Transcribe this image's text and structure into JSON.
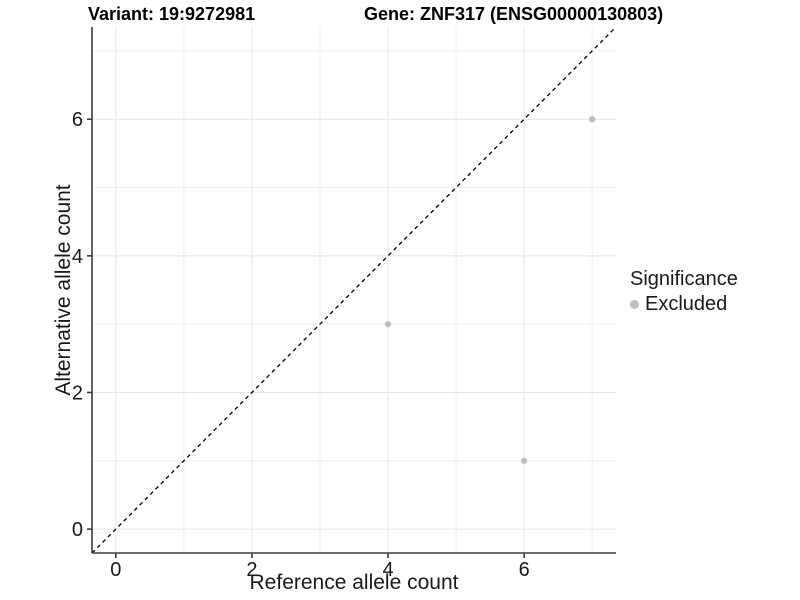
{
  "header": {
    "variant_title": "Variant: 19:9272981",
    "gene_title": "Gene: ZNF317 (ENSG00000130803)"
  },
  "legend": {
    "title": "Significance",
    "items": [
      {
        "label": "Excluded",
        "color": "#bebebe"
      }
    ]
  },
  "chart_data": {
    "type": "scatter",
    "xlabel": "Reference allele count",
    "ylabel": "Alternative allele count",
    "xlim": [
      -0.35,
      7.35
    ],
    "ylim": [
      -0.35,
      7.35
    ],
    "xticks": [
      0,
      2,
      4,
      6
    ],
    "yticks": [
      0,
      2,
      4,
      6
    ],
    "grid": "on",
    "gridlines_major": [
      0,
      2,
      4,
      6
    ],
    "gridlines_minor": [
      1,
      3,
      5,
      7
    ],
    "legend_position": "right",
    "series": [
      {
        "name": "Excluded",
        "color": "#bebebe",
        "points": [
          [
            4,
            3
          ],
          [
            6,
            1
          ],
          [
            7,
            6
          ]
        ]
      }
    ],
    "reference_line": {
      "kind": "identity",
      "from": [
        -0.35,
        -0.35
      ],
      "to": [
        7.35,
        7.35
      ],
      "style": "dashed",
      "color": "#000000"
    }
  },
  "colors": {
    "grid_major": "#e4e4e4",
    "grid_minor": "#eeeeee",
    "axis_line": "#3c3c3c",
    "tick_text": "#1a1a1a",
    "point": "#bebebe"
  }
}
